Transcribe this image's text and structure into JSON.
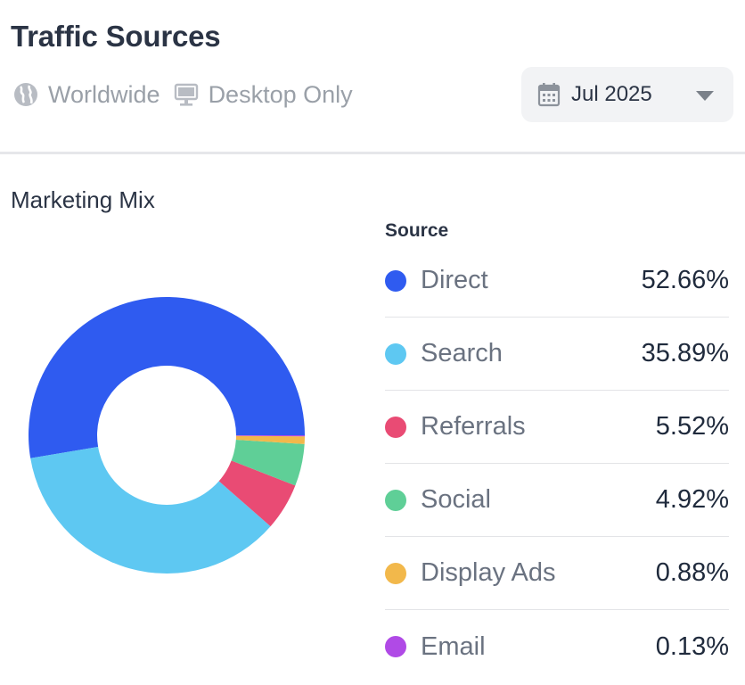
{
  "header": {
    "title": "Traffic Sources",
    "filters": [
      {
        "label": "Worldwide",
        "icon": "globe-icon"
      },
      {
        "label": "Desktop Only",
        "icon": "desktop-icon"
      }
    ],
    "date_picker": {
      "label": "Jul 2025",
      "icon": "calendar-icon",
      "caret_icon": "caret-down-icon"
    }
  },
  "section": {
    "title": "Marketing Mix"
  },
  "legend": {
    "header": "Source"
  },
  "chart_data": {
    "type": "pie",
    "donut": true,
    "title": "Marketing Mix",
    "legend_title": "Source",
    "legend_position": "right",
    "slices": [
      {
        "label": "Direct",
        "value": 52.66,
        "display": "52.66%",
        "color": "#2f5bf0"
      },
      {
        "label": "Search",
        "value": 35.89,
        "display": "35.89%",
        "color": "#5ec8f2"
      },
      {
        "label": "Referrals",
        "value": 5.52,
        "display": "5.52%",
        "color": "#e94b74"
      },
      {
        "label": "Social",
        "value": 4.92,
        "display": "4.92%",
        "color": "#5fcf97"
      },
      {
        "label": "Display Ads",
        "value": 0.88,
        "display": "0.88%",
        "color": "#f2b84b"
      },
      {
        "label": "Email",
        "value": 0.13,
        "display": "0.13%",
        "color": "#b04ae6"
      }
    ]
  }
}
